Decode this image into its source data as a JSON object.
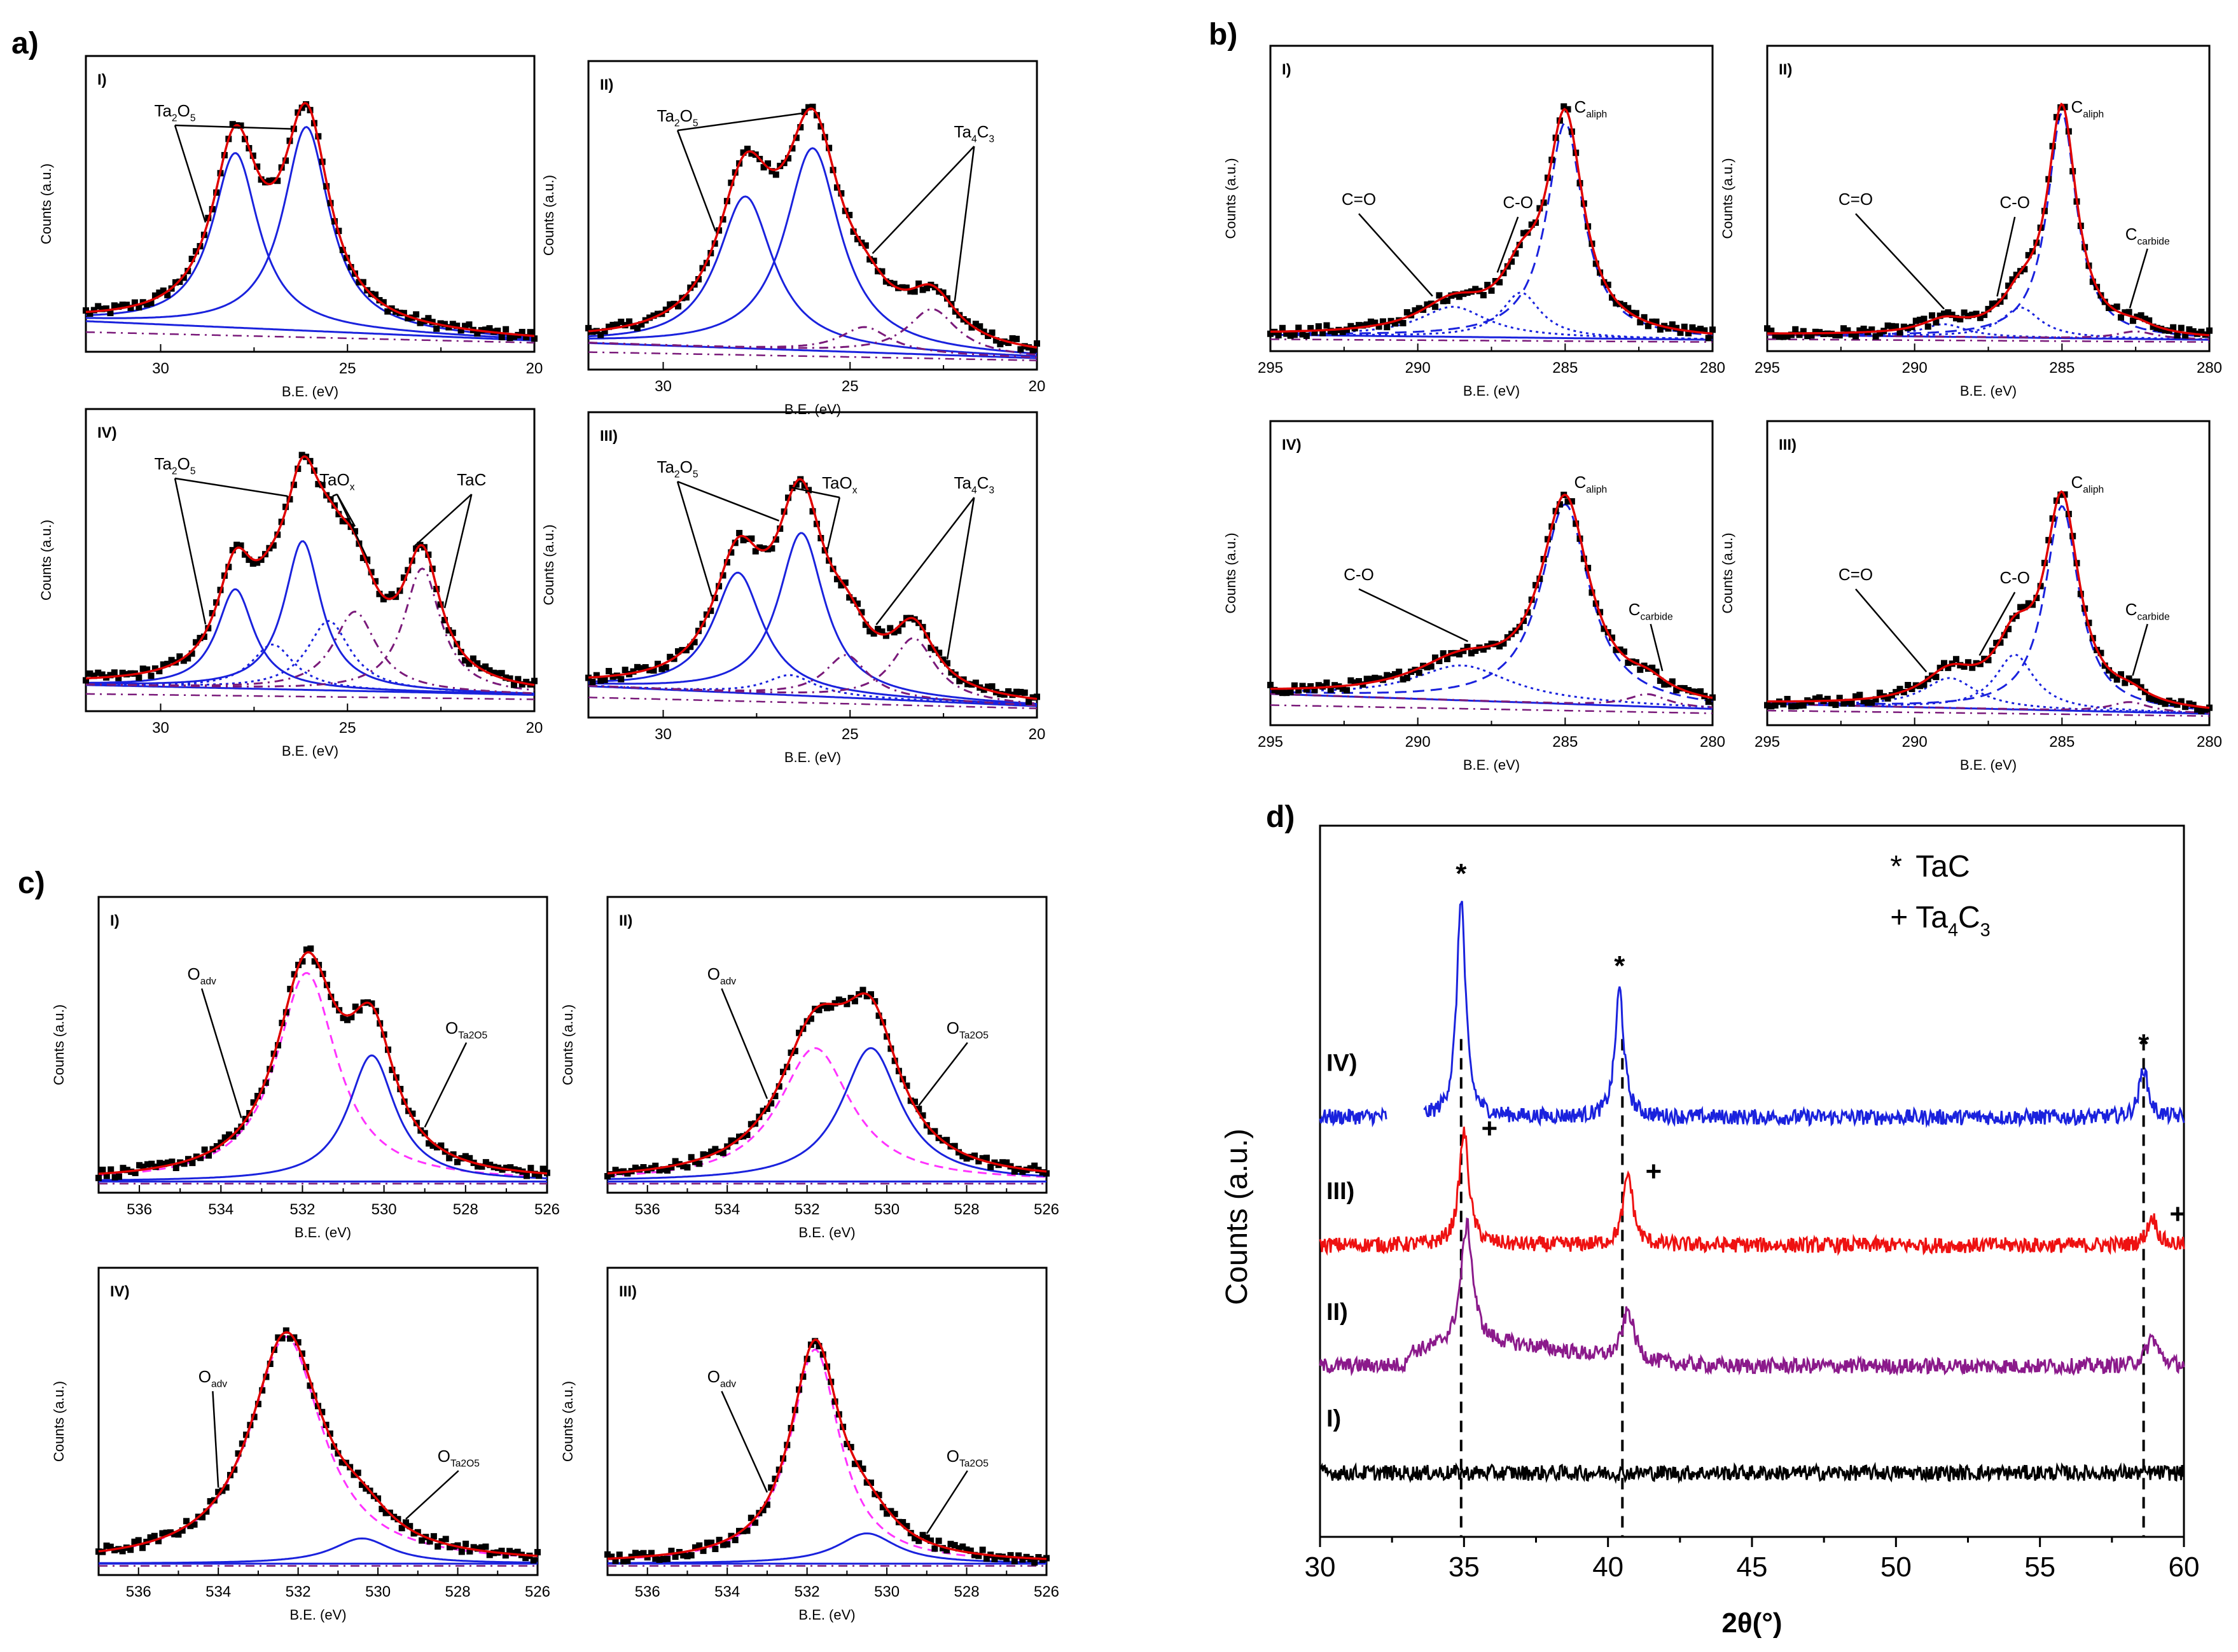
{
  "panel_labels": {
    "a": "a)",
    "b": "b)",
    "c": "c)",
    "d": "d)"
  },
  "colors": {
    "data": "#000000",
    "fit": "#e00000",
    "blue": "#1a22dd",
    "purple": "#7a1a7a",
    "magenta": "#ff33ff",
    "xrd_IV": "#1a22dd",
    "xrd_III": "#ee1111",
    "xrd_II": "#8b1a8b",
    "xrd_I": "#000000"
  },
  "chart_data": [
    {
      "id": "a-I",
      "type": "line",
      "title": "I)",
      "xlabel": "B.E. (eV)",
      "ylabel": "Counts (a.u.)",
      "xlim": [
        32,
        20
      ],
      "xticks": [
        30,
        25,
        20
      ],
      "ylim": [
        0,
        1
      ],
      "peaks": [
        {
          "center": 28.0,
          "amp": 0.72,
          "width": 0.75,
          "color": "blue",
          "dash": ""
        },
        {
          "center": 26.1,
          "amp": 0.84,
          "width": 0.75,
          "color": "blue",
          "dash": ""
        }
      ],
      "baseline": [
        0.1,
        0.02
      ],
      "annotations": [
        {
          "label": "Ta2O5",
          "pos": "top-left",
          "targets": [
            28.8,
            26.5
          ]
        }
      ]
    },
    {
      "id": "a-II",
      "type": "line",
      "title": "II)",
      "xlabel": "B.E. (eV)",
      "ylabel": "Counts (a.u.)",
      "xlim": [
        32,
        20
      ],
      "xticks": [
        30,
        25,
        20
      ],
      "ylim": [
        0,
        1
      ],
      "peaks": [
        {
          "center": 27.8,
          "amp": 0.6,
          "width": 0.9,
          "color": "blue",
          "dash": ""
        },
        {
          "center": 26.0,
          "amp": 0.8,
          "width": 0.9,
          "color": "blue",
          "dash": ""
        },
        {
          "center": 24.6,
          "amp": 0.1,
          "width": 0.8,
          "color": "purple",
          "dash": "14,8,3,8"
        },
        {
          "center": 22.8,
          "amp": 0.18,
          "width": 0.8,
          "color": "purple",
          "dash": "14,8,3,8"
        }
      ],
      "baseline": [
        0.08,
        0.02
      ],
      "annotations": [
        {
          "label": "Ta2O5",
          "pos": "top-left",
          "targets": [
            28.6,
            26.3
          ]
        },
        {
          "label": "Ta4C3",
          "pos": "right",
          "targets": [
            24.4,
            22.2
          ]
        }
      ]
    },
    {
      "id": "a-IV",
      "type": "line",
      "title": "IV)",
      "xlabel": "B.E. (eV)",
      "ylabel": "Counts (a.u.)",
      "xlim": [
        32,
        20
      ],
      "xticks": [
        30,
        25,
        20
      ],
      "ylim": [
        0,
        1
      ],
      "peaks": [
        {
          "center": 28.0,
          "amp": 0.4,
          "width": 0.6,
          "color": "blue",
          "dash": ""
        },
        {
          "center": 26.2,
          "amp": 0.6,
          "width": 0.6,
          "color": "blue",
          "dash": ""
        },
        {
          "center": 27.0,
          "amp": 0.18,
          "width": 0.7,
          "color": "blue",
          "dash": "4,6"
        },
        {
          "center": 25.5,
          "amp": 0.28,
          "width": 0.7,
          "color": "blue",
          "dash": "4,6"
        },
        {
          "center": 24.8,
          "amp": 0.32,
          "width": 0.7,
          "color": "purple",
          "dash": "14,8,3,8"
        },
        {
          "center": 23.0,
          "amp": 0.5,
          "width": 0.6,
          "color": "purple",
          "dash": "14,8,3,8"
        }
      ],
      "baseline": [
        0.08,
        0.04
      ],
      "annotations": [
        {
          "label": "Ta2O5",
          "pos": "top-left",
          "targets": [
            28.8,
            26.6
          ]
        },
        {
          "label": "TaOx",
          "pos": "mid",
          "targets": [
            25.4,
            24.8,
            24.4
          ]
        },
        {
          "label": "TaC",
          "pos": "right",
          "targets": [
            23.2,
            22.4
          ]
        }
      ]
    },
    {
      "id": "a-III",
      "type": "line",
      "title": "III)",
      "xlabel": "B.E. (eV)",
      "ylabel": "Counts (a.u.)",
      "xlim": [
        32,
        20
      ],
      "xticks": [
        30,
        25,
        20
      ],
      "ylim": [
        0,
        1
      ],
      "peaks": [
        {
          "center": 28.0,
          "amp": 0.48,
          "width": 0.8,
          "color": "blue",
          "dash": ""
        },
        {
          "center": 26.3,
          "amp": 0.65,
          "width": 0.75,
          "color": "blue",
          "dash": ""
        },
        {
          "center": 26.6,
          "amp": 0.08,
          "width": 0.8,
          "color": "blue",
          "dash": "4,6"
        },
        {
          "center": 25.1,
          "amp": 0.17,
          "width": 0.7,
          "color": "purple",
          "dash": "14,8,3,8"
        },
        {
          "center": 23.3,
          "amp": 0.25,
          "width": 0.7,
          "color": "purple",
          "dash": "14,8,3,8"
        }
      ],
      "baseline": [
        0.1,
        0.02
      ],
      "annotations": [
        {
          "label": "Ta2O5",
          "pos": "top-left",
          "targets": [
            28.7,
            26.9
          ]
        },
        {
          "label": "TaOx",
          "pos": "mid",
          "targets": [
            26.6,
            25.6
          ]
        },
        {
          "label": "Ta4C3",
          "pos": "right",
          "targets": [
            24.3,
            22.4
          ]
        }
      ]
    },
    {
      "id": "b-I",
      "type": "line",
      "title": "I)",
      "xlabel": "B.E. (eV)",
      "ylabel": "Counts (a.u.)",
      "xlim": [
        295,
        280
      ],
      "xticks": [
        295,
        290,
        285,
        280
      ],
      "ylim": [
        0,
        1
      ],
      "peaks": [
        {
          "center": 285.0,
          "amp": 0.86,
          "width": 0.75,
          "color": "blue",
          "dash": "18,10"
        },
        {
          "center": 286.5,
          "amp": 0.18,
          "width": 0.8,
          "color": "blue",
          "dash": "4,6"
        },
        {
          "center": 288.8,
          "amp": 0.12,
          "width": 1.4,
          "color": "blue",
          "dash": "4,6"
        }
      ],
      "baseline": [
        0.04,
        0.02
      ],
      "annotations": [
        {
          "label": "C=O",
          "pos": "left",
          "targets": [
            289.5
          ]
        },
        {
          "label": "C-O",
          "pos": "mid",
          "targets": [
            287.3
          ]
        },
        {
          "label": "Caliph",
          "pos": "top-right",
          "targets": []
        }
      ]
    },
    {
      "id": "b-II",
      "type": "line",
      "title": "II)",
      "xlabel": "B.E. (eV)",
      "ylabel": "Counts (a.u.)",
      "xlim": [
        295,
        280
      ],
      "xticks": [
        295,
        290,
        285,
        280
      ],
      "ylim": [
        0,
        1
      ],
      "peaks": [
        {
          "center": 285.0,
          "amp": 0.9,
          "width": 0.6,
          "color": "blue",
          "dash": "18,10"
        },
        {
          "center": 286.4,
          "amp": 0.12,
          "width": 0.8,
          "color": "blue",
          "dash": "4,6"
        },
        {
          "center": 289.0,
          "amp": 0.05,
          "width": 0.9,
          "color": "blue",
          "dash": "4,6"
        },
        {
          "center": 282.5,
          "amp": 0.03,
          "width": 0.8,
          "color": "purple",
          "dash": "14,8,3,8"
        }
      ],
      "baseline": [
        0.04,
        0.02
      ],
      "annotations": [
        {
          "label": "C=O",
          "pos": "left",
          "targets": [
            289.0
          ]
        },
        {
          "label": "C-O",
          "pos": "mid",
          "targets": [
            287.2
          ]
        },
        {
          "label": "Caliph",
          "pos": "top-right",
          "targets": []
        },
        {
          "label": "Ccarbide",
          "pos": "right",
          "targets": [
            282.7
          ]
        }
      ]
    },
    {
      "id": "b-IV",
      "type": "line",
      "title": "IV)",
      "xlabel": "B.E. (eV)",
      "ylabel": "Counts (a.u.)",
      "xlim": [
        295,
        280
      ],
      "xticks": [
        295,
        290,
        285,
        280
      ],
      "ylim": [
        0,
        1
      ],
      "peaks": [
        {
          "center": 285.0,
          "amp": 0.8,
          "width": 1.0,
          "color": "blue",
          "dash": "18,10"
        },
        {
          "center": 288.5,
          "amp": 0.14,
          "width": 2.0,
          "color": "blue",
          "dash": "4,6"
        },
        {
          "center": 282.2,
          "amp": 0.05,
          "width": 0.8,
          "color": "purple",
          "dash": "14,8,3,8"
        }
      ],
      "baseline": [
        0.1,
        0.04
      ],
      "annotations": [
        {
          "label": "C-O",
          "pos": "left",
          "targets": [
            288.3
          ]
        },
        {
          "label": "Caliph",
          "pos": "top-right",
          "targets": []
        },
        {
          "label": "Ccarbide",
          "pos": "right",
          "targets": [
            281.7
          ]
        }
      ]
    },
    {
      "id": "b-III",
      "type": "line",
      "title": "III)",
      "xlabel": "B.E. (eV)",
      "ylabel": "Counts (a.u.)",
      "xlim": [
        295,
        280
      ],
      "xticks": [
        295,
        290,
        285,
        280
      ],
      "ylim": [
        0,
        1
      ],
      "peaks": [
        {
          "center": 285.0,
          "amp": 0.82,
          "width": 0.7,
          "color": "blue",
          "dash": "18,10"
        },
        {
          "center": 286.6,
          "amp": 0.22,
          "width": 0.8,
          "color": "blue",
          "dash": "4,6"
        },
        {
          "center": 288.8,
          "amp": 0.12,
          "width": 1.1,
          "color": "blue",
          "dash": "4,6"
        },
        {
          "center": 282.7,
          "amp": 0.04,
          "width": 0.8,
          "color": "purple",
          "dash": "14,8,3,8"
        }
      ],
      "baseline": [
        0.06,
        0.02
      ],
      "annotations": [
        {
          "label": "C=O",
          "pos": "left",
          "targets": [
            289.6
          ]
        },
        {
          "label": "C-O",
          "pos": "mid",
          "targets": [
            287.8
          ]
        },
        {
          "label": "Caliph",
          "pos": "top-right",
          "targets": []
        },
        {
          "label": "Ccarbide",
          "pos": "right",
          "targets": [
            282.6
          ]
        }
      ]
    },
    {
      "id": "c-I",
      "type": "line",
      "title": "I)",
      "xlabel": "B.E. (eV)",
      "ylabel": "Counts (a.u.)",
      "xlim": [
        537,
        526
      ],
      "xticks": [
        536,
        534,
        532,
        530,
        528,
        526
      ],
      "ylim": [
        0,
        1
      ],
      "peaks": [
        {
          "center": 531.9,
          "amp": 0.86,
          "width": 0.9,
          "color": "magenta",
          "dash": "14,9"
        },
        {
          "center": 530.3,
          "amp": 0.52,
          "width": 0.7,
          "color": "blue",
          "dash": ""
        }
      ],
      "baseline": [
        0.02,
        0.02
      ],
      "annotations": [
        {
          "label": "Oadv",
          "pos": "left",
          "targets": [
            533.5
          ]
        },
        {
          "label": "OTa2O5",
          "pos": "right",
          "targets": [
            529.0
          ]
        }
      ]
    },
    {
      "id": "c-II",
      "type": "line",
      "title": "II)",
      "xlabel": "B.E. (eV)",
      "ylabel": "Counts (a.u.)",
      "xlim": [
        537,
        526
      ],
      "xticks": [
        536,
        534,
        532,
        530,
        528,
        526
      ],
      "ylim": [
        0,
        1
      ],
      "peaks": [
        {
          "center": 531.8,
          "amp": 0.55,
          "width": 1.1,
          "color": "magenta",
          "dash": "14,9"
        },
        {
          "center": 530.4,
          "amp": 0.55,
          "width": 0.9,
          "color": "blue",
          "dash": ""
        }
      ],
      "baseline": [
        0.02,
        0.02
      ],
      "annotations": [
        {
          "label": "Oadv",
          "pos": "left",
          "targets": [
            533.0
          ]
        },
        {
          "label": "OTa2O5",
          "pos": "right",
          "targets": [
            529.2
          ]
        }
      ]
    },
    {
      "id": "c-IV",
      "type": "line",
      "title": "IV)",
      "xlabel": "B.E. (eV)",
      "ylabel": "Counts (a.u.)",
      "xlim": [
        537,
        526
      ],
      "xticks": [
        536,
        534,
        532,
        530,
        528,
        526
      ],
      "ylim": [
        0,
        1
      ],
      "peaks": [
        {
          "center": 532.3,
          "amp": 0.9,
          "width": 1.1,
          "color": "magenta",
          "dash": "14,9"
        },
        {
          "center": 530.4,
          "amp": 0.1,
          "width": 0.9,
          "color": "blue",
          "dash": ""
        }
      ],
      "baseline": [
        0.02,
        0.02
      ],
      "annotations": [
        {
          "label": "Oadv",
          "pos": "left",
          "targets": [
            534.0
          ]
        },
        {
          "label": "OTa2O5",
          "pos": "right",
          "targets": [
            529.3
          ]
        }
      ]
    },
    {
      "id": "c-III",
      "type": "line",
      "title": "III)",
      "xlabel": "B.E. (eV)",
      "ylabel": "Counts (a.u.)",
      "xlim": [
        537,
        526
      ],
      "xticks": [
        536,
        534,
        532,
        530,
        528,
        526
      ],
      "ylim": [
        0,
        1
      ],
      "peaks": [
        {
          "center": 531.8,
          "amp": 0.85,
          "width": 0.75,
          "color": "magenta",
          "dash": "14,9"
        },
        {
          "center": 530.5,
          "amp": 0.12,
          "width": 0.9,
          "color": "blue",
          "dash": ""
        }
      ],
      "baseline": [
        0.02,
        0.02
      ],
      "annotations": [
        {
          "label": "Oadv",
          "pos": "left",
          "targets": [
            533.0
          ]
        },
        {
          "label": "OTa2O5",
          "pos": "right",
          "targets": [
            529.0
          ]
        }
      ]
    },
    {
      "id": "d",
      "type": "line",
      "title": "",
      "xlabel": "2θ(°)",
      "ylabel": "Counts (a.u.)",
      "xlim": [
        30,
        60
      ],
      "xticks": [
        30,
        35,
        40,
        45,
        50,
        55,
        60
      ],
      "ylim": [
        0,
        1
      ],
      "legend": [
        {
          "symbol": "*",
          "label": "TaC"
        },
        {
          "symbol": "+",
          "label": "Ta4C3"
        }
      ],
      "legend_position": "top-right",
      "reference_lines": [
        34.9,
        40.5,
        58.6
      ],
      "series": [
        {
          "name": "IV)",
          "color": "xrd_IV",
          "offset": 0.59,
          "gap": [
            32.3,
            33.6
          ],
          "peaks": [
            {
              "center": 34.9,
              "amp": 0.31,
              "width": 0.18
            },
            {
              "center": 40.4,
              "amp": 0.18,
              "width": 0.18
            },
            {
              "center": 58.6,
              "amp": 0.07,
              "width": 0.18
            }
          ],
          "marker": "*"
        },
        {
          "name": "III)",
          "color": "xrd_III",
          "offset": 0.41,
          "gap": [],
          "peaks": [
            {
              "center": 35.0,
              "amp": 0.16,
              "width": 0.2
            },
            {
              "center": 40.7,
              "amp": 0.1,
              "width": 0.2
            },
            {
              "center": 58.9,
              "amp": 0.04,
              "width": 0.2
            }
          ],
          "marker": "+"
        },
        {
          "name": "II)",
          "color": "xrd_II",
          "offset": 0.24,
          "gap": [],
          "peaks": [
            {
              "center": 35.1,
              "amp": 0.17,
              "width": 0.25
            },
            {
              "center": 40.7,
              "amp": 0.07,
              "width": 0.25
            },
            {
              "center": 58.9,
              "amp": 0.04,
              "width": 0.25
            }
          ],
          "marker": ""
        },
        {
          "name": "I)",
          "color": "xrd_I",
          "offset": 0.09,
          "gap": [],
          "peaks": [],
          "marker": ""
        }
      ]
    }
  ]
}
